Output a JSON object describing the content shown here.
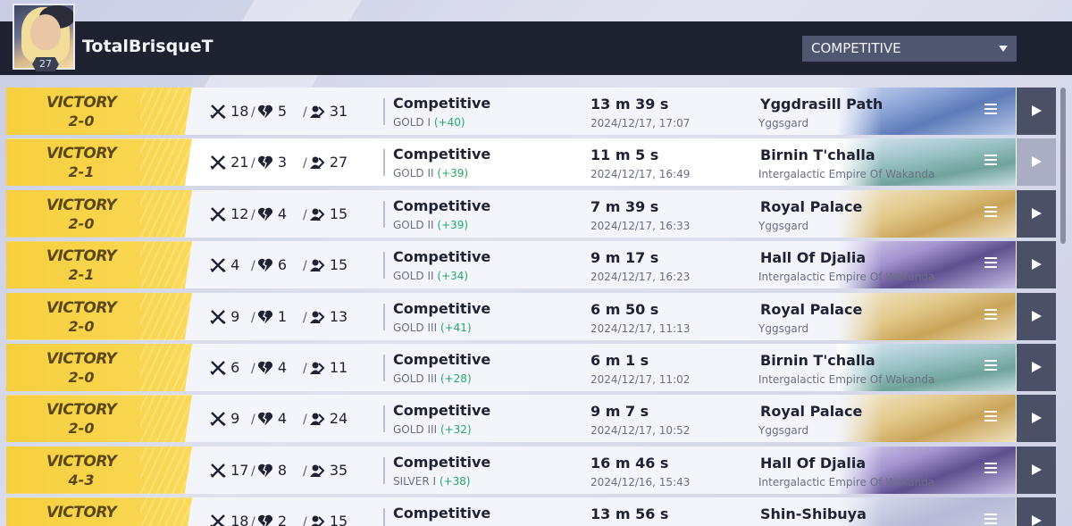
{
  "header": {
    "username": "TotalBrisqueT",
    "level": "27",
    "mode_select": "COMPETITIVE"
  },
  "matches": [
    {
      "result": "VICTORY",
      "score": "2-0",
      "kills": "18",
      "deaths": "5",
      "assists": "31",
      "mode": "Competitive",
      "rank": "GOLD I",
      "delta": "(+40)",
      "duration": "13 m 39 s",
      "date": "2024/12/17, 17:07",
      "map": "Yggdrasill Path",
      "region": "Yggsgard",
      "theme": "tree"
    },
    {
      "result": "VICTORY",
      "score": "2-1",
      "kills": "21",
      "deaths": "3",
      "assists": "27",
      "mode": "Competitive",
      "rank": "GOLD II",
      "delta": "(+39)",
      "duration": "11 m 5 s",
      "date": "2024/12/17, 16:49",
      "map": "Birnin T'challa",
      "region": "Intergalactic Empire Of Wakanda",
      "theme": "wakanda"
    },
    {
      "result": "VICTORY",
      "score": "2-0",
      "kills": "12",
      "deaths": "4",
      "assists": "15",
      "mode": "Competitive",
      "rank": "GOLD II",
      "delta": "(+39)",
      "duration": "7 m 39 s",
      "date": "2024/12/17, 16:33",
      "map": "Royal Palace",
      "region": "Yggsgard",
      "theme": "palace"
    },
    {
      "result": "VICTORY",
      "score": "2-1",
      "kills": "4",
      "deaths": "6",
      "assists": "15",
      "mode": "Competitive",
      "rank": "GOLD II",
      "delta": "(+34)",
      "duration": "9 m 17 s",
      "date": "2024/12/17, 16:23",
      "map": "Hall Of Djalia",
      "region": "Intergalactic Empire Of Wakanda",
      "theme": "djalia"
    },
    {
      "result": "VICTORY",
      "score": "2-0",
      "kills": "9",
      "deaths": "1",
      "assists": "13",
      "mode": "Competitive",
      "rank": "GOLD III",
      "delta": "(+41)",
      "duration": "6 m 50 s",
      "date": "2024/12/17, 11:13",
      "map": "Royal Palace",
      "region": "Yggsgard",
      "theme": "palace"
    },
    {
      "result": "VICTORY",
      "score": "2-0",
      "kills": "6",
      "deaths": "4",
      "assists": "11",
      "mode": "Competitive",
      "rank": "GOLD III",
      "delta": "(+28)",
      "duration": "6 m 1 s",
      "date": "2024/12/17, 11:02",
      "map": "Birnin T'challa",
      "region": "Intergalactic Empire Of Wakanda",
      "theme": "wakanda"
    },
    {
      "result": "VICTORY",
      "score": "2-0",
      "kills": "9",
      "deaths": "4",
      "assists": "24",
      "mode": "Competitive",
      "rank": "GOLD III",
      "delta": "(+32)",
      "duration": "9 m 7 s",
      "date": "2024/12/17, 10:52",
      "map": "Royal Palace",
      "region": "Yggsgard",
      "theme": "palace"
    },
    {
      "result": "VICTORY",
      "score": "4-3",
      "kills": "17",
      "deaths": "8",
      "assists": "35",
      "mode": "Competitive",
      "rank": "SILVER I",
      "delta": "(+38)",
      "duration": "16 m 46 s",
      "date": "2024/12/16, 15:43",
      "map": "Hall Of Djalia",
      "region": "Intergalactic Empire Of Wakanda",
      "theme": "djalia"
    },
    {
      "result": "VICTORY",
      "score": "",
      "kills": "18",
      "deaths": "2",
      "assists": "15",
      "mode": "Competitive",
      "rank": "",
      "delta": "",
      "duration": "13 m 56 s",
      "date": "",
      "map": "Shin-Shibuya",
      "region": "",
      "theme": "shibuya"
    }
  ],
  "highlighted_row": 1,
  "colors": {
    "header_bg": "#1d2130",
    "victory_gold": "#f7cf3e",
    "delta_green": "#23a866",
    "play_button": "#4a5066"
  }
}
